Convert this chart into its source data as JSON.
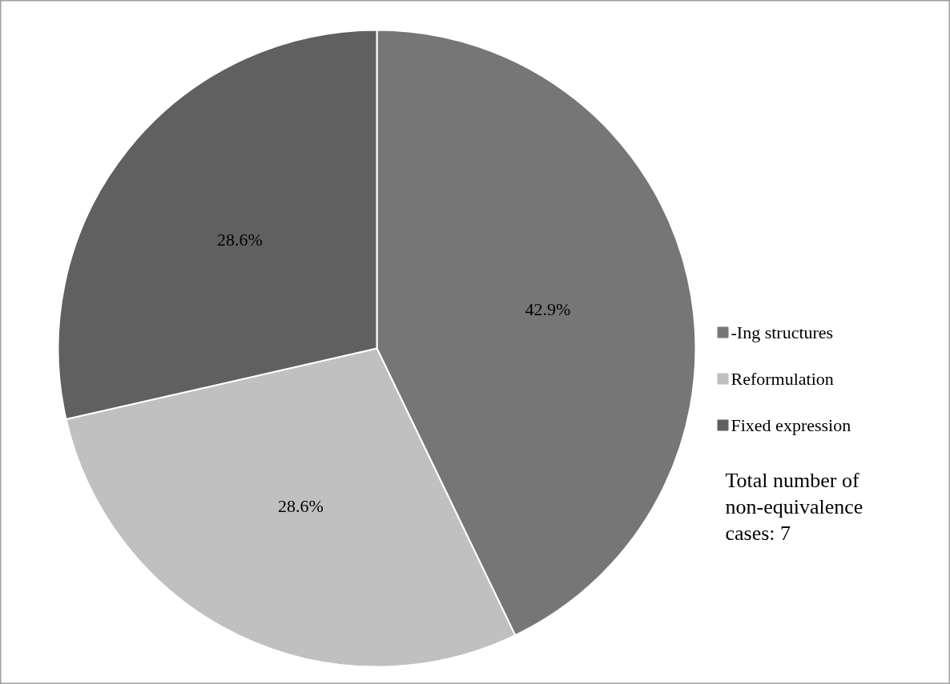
{
  "chart_data": {
    "type": "pie",
    "categories": [
      "-Ing structures",
      "Reformulation",
      "Fixed expression"
    ],
    "values": [
      42.9,
      28.6,
      28.6
    ],
    "colors": [
      "#767676",
      "#c0c0c0",
      "#606060"
    ],
    "value_labels": [
      "42.9%",
      "28.6%",
      "28.6%"
    ],
    "legend": "right",
    "annotations": [
      "Total number of non-equivalence cases: 7"
    ]
  }
}
